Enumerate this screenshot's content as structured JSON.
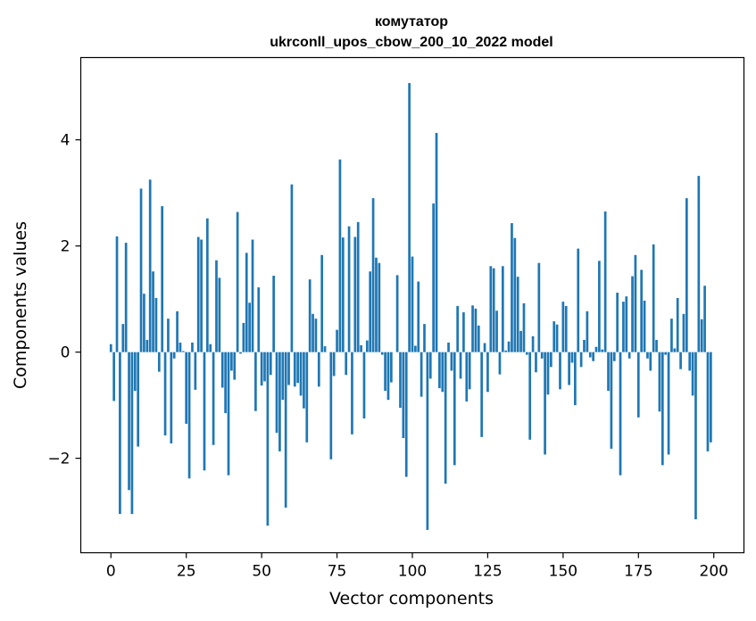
{
  "chart_data": {
    "type": "bar",
    "title_line1": "комутатор",
    "title_line2": "ukrconll_upos_cbow_200_10_2022 model",
    "xlabel": "Vector components",
    "ylabel": "Components values",
    "xlim": [
      -10,
      210
    ],
    "ylim": [
      -3.78,
      5.55
    ],
    "xticks": [
      0,
      25,
      50,
      75,
      100,
      125,
      150,
      175,
      200
    ],
    "yticks": [
      -2,
      0,
      2,
      4
    ],
    "ytick_labels": [
      "−2",
      "0",
      "2",
      "4"
    ],
    "bar_color": "#1f77b4",
    "grid": false,
    "values": [
      0.15,
      -0.92,
      2.18,
      -3.05,
      0.53,
      2.06,
      -2.6,
      -3.05,
      -0.73,
      -1.78,
      3.08,
      1.1,
      0.23,
      3.25,
      1.52,
      1.02,
      -0.37,
      2.75,
      -1.57,
      0.63,
      -1.72,
      -0.12,
      0.77,
      0.18,
      0.02,
      -1.35,
      -2.38,
      0.18,
      -0.71,
      2.17,
      2.12,
      -2.23,
      2.52,
      0.15,
      -1.75,
      1.73,
      1.4,
      -0.67,
      -1.15,
      -2.32,
      -0.35,
      -0.52,
      2.64,
      -0.03,
      0.55,
      1.87,
      0.93,
      2.12,
      -1.11,
      1.22,
      -0.63,
      -0.55,
      -3.27,
      -0.43,
      1.44,
      -1.52,
      -1.87,
      -0.9,
      -2.93,
      -0.62,
      3.16,
      -0.65,
      -0.58,
      -0.82,
      -1.06,
      -1.7,
      1.37,
      0.72,
      0.63,
      -0.65,
      1.83,
      0.11,
      0.0,
      -2.02,
      -0.45,
      0.42,
      3.63,
      2.16,
      -0.43,
      2.37,
      -1.55,
      2.17,
      2.45,
      0.13,
      -1.25,
      0.22,
      1.52,
      2.9,
      1.78,
      1.68,
      -0.05,
      -0.73,
      -0.9,
      -0.57,
      0.0,
      1.45,
      -1.05,
      -1.62,
      -2.35,
      5.07,
      1.8,
      0.12,
      1.33,
      -0.84,
      0.53,
      -3.35,
      -0.5,
      2.8,
      4.13,
      -0.68,
      -0.75,
      -2.48,
      0.18,
      -0.35,
      -2.13,
      0.87,
      -0.5,
      0.75,
      -0.93,
      -0.7,
      0.88,
      0.82,
      0.5,
      -1.6,
      0.17,
      -0.75,
      1.62,
      1.58,
      0.78,
      -0.42,
      1.62,
      0.03,
      0.2,
      2.43,
      2.15,
      1.42,
      0.4,
      0.92,
      -0.05,
      -1.65,
      0.3,
      -0.38,
      1.68,
      -0.12,
      -1.93,
      -0.8,
      -0.28,
      0.58,
      0.52,
      -0.7,
      0.95,
      0.87,
      -0.62,
      -0.2,
      -1.0,
      1.95,
      -0.28,
      0.23,
      0.77,
      -0.1,
      -0.17,
      0.1,
      1.72,
      0.05,
      2.65,
      -0.73,
      -1.82,
      -0.17,
      1.12,
      -2.32,
      0.95,
      1.05,
      -0.12,
      1.43,
      1.83,
      -1.23,
      1.55,
      0.97,
      -0.12,
      -0.35,
      2.03,
      0.23,
      -1.12,
      -2.13,
      -0.05,
      -1.93,
      0.63,
      0.07,
      1.02,
      -0.32,
      0.72,
      2.9,
      -0.35,
      -0.82,
      -3.15,
      3.32,
      0.62,
      1.25,
      -1.87,
      -1.7
    ]
  }
}
